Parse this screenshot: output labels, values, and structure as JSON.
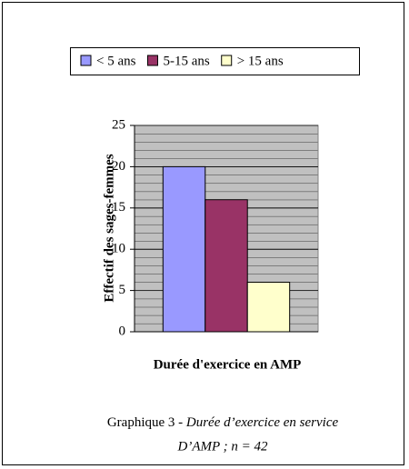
{
  "chart_data": {
    "type": "bar",
    "ylabel": "Effectif des sages-femmes",
    "xlabel": "Durée d'exercice en AMP",
    "categories": [
      null
    ],
    "series": [
      {
        "name": "< 5 ans",
        "color": "#9999ff",
        "values": [
          20
        ]
      },
      {
        "name": "5-15 ans",
        "color": "#993366",
        "values": [
          16
        ]
      },
      {
        "name": "> 15 ans",
        "color": "#ffffcc",
        "values": [
          6
        ]
      }
    ],
    "ylim": [
      0,
      25
    ],
    "yticks": [
      0,
      5,
      10,
      15,
      20,
      25
    ],
    "grid": true,
    "legend": "top",
    "caption_prefix": "Graphique 3 -",
    "caption_lines": [
      "Durée d’exercice en service",
      "D’AMP ; n = 42"
    ]
  }
}
